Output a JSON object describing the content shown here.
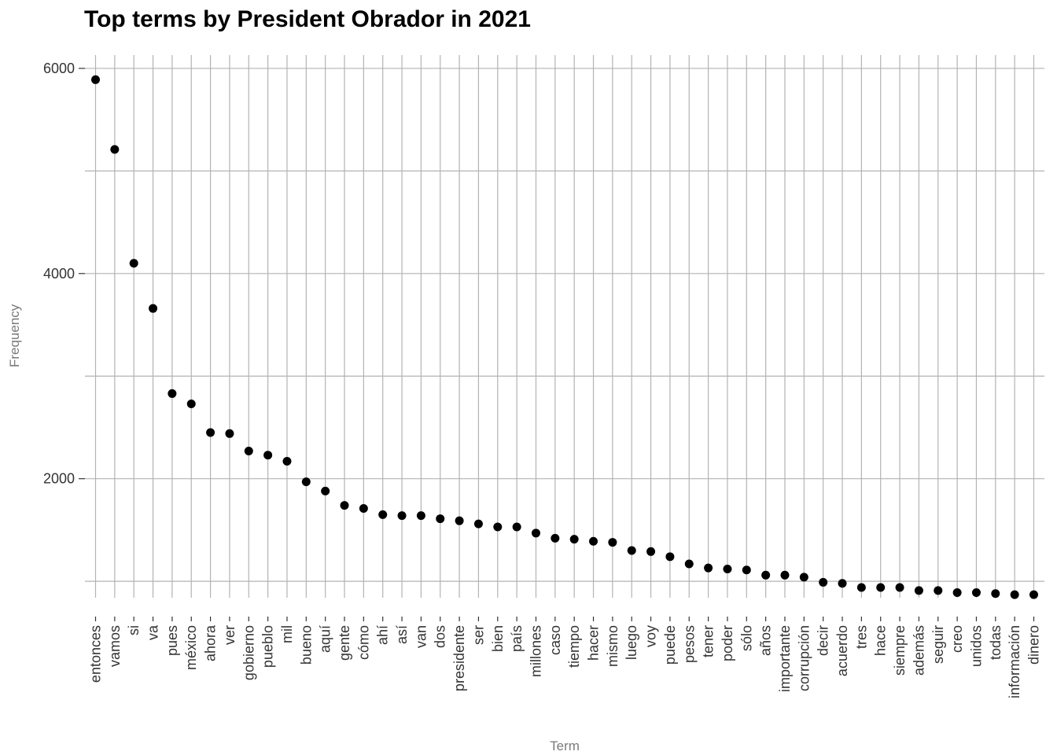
{
  "chart_data": {
    "type": "scatter",
    "title": "Top terms by President Obrador in 2021",
    "xlabel": "Term",
    "ylabel": "Frequency",
    "ylim": [
      840,
      6130
    ],
    "yticks": [
      2000,
      4000,
      6000
    ],
    "grid": true,
    "legend": "none",
    "point_color": "#000000",
    "grid_color": "#b3b3b3",
    "categories": [
      "entonces",
      "vamos",
      "si",
      "va",
      "pues",
      "méxico",
      "ahora",
      "ver",
      "gobierno",
      "pueblo",
      "mil",
      "bueno",
      "aquí",
      "gente",
      "cómo",
      "ahí",
      "así",
      "van",
      "dos",
      "presidente",
      "ser",
      "bien",
      "país",
      "millones",
      "caso",
      "tiempo",
      "hacer",
      "mismo",
      "luego",
      "voy",
      "puede",
      "pesos",
      "tener",
      "poder",
      "sólo",
      "años",
      "importante",
      "corrupción",
      "decir",
      "acuerdo",
      "tres",
      "hace",
      "siempre",
      "además",
      "seguir",
      "creo",
      "unidos",
      "todas",
      "información",
      "dinero"
    ],
    "values": [
      5890,
      5210,
      4100,
      3660,
      2830,
      2730,
      2450,
      2440,
      2270,
      2230,
      2170,
      1970,
      1880,
      1740,
      1710,
      1650,
      1640,
      1640,
      1610,
      1590,
      1560,
      1530,
      1530,
      1470,
      1420,
      1410,
      1390,
      1380,
      1300,
      1290,
      1240,
      1170,
      1130,
      1120,
      1110,
      1060,
      1060,
      1040,
      990,
      980,
      940,
      940,
      940,
      910,
      910,
      890,
      890,
      880,
      870,
      870
    ]
  }
}
